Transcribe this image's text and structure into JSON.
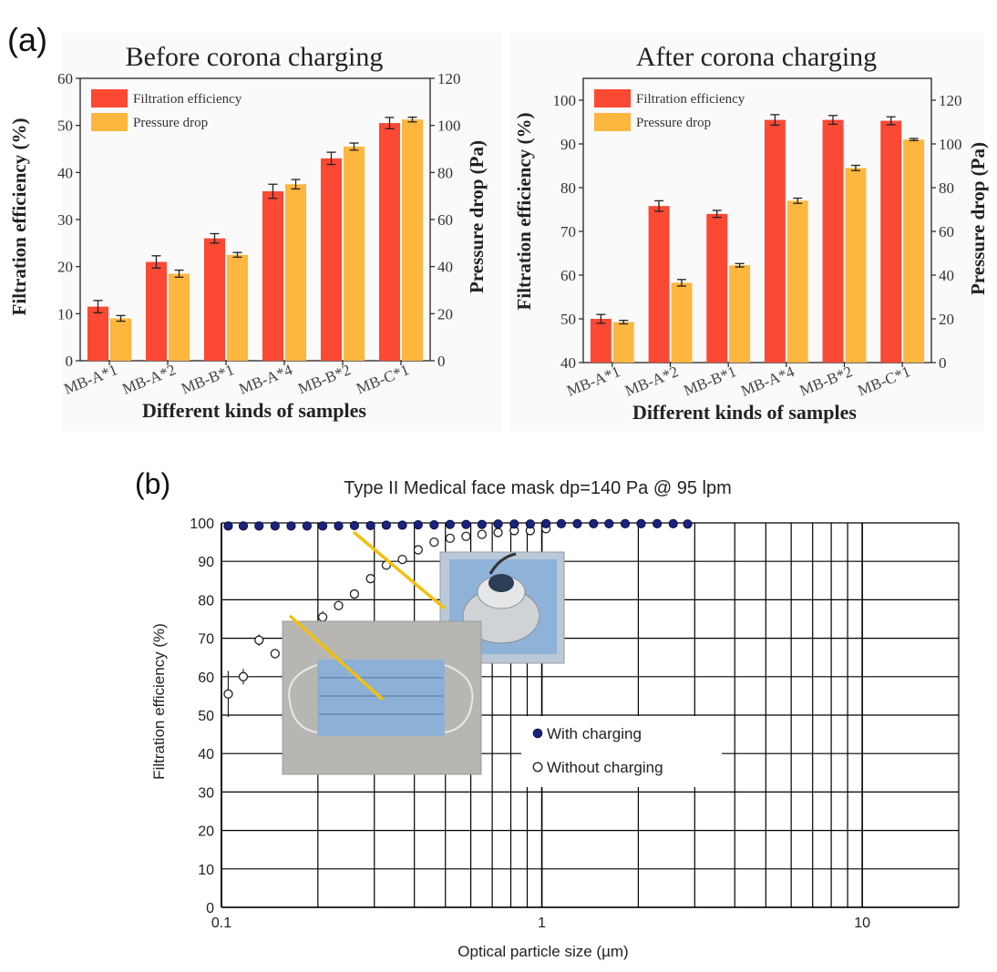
{
  "figure": {
    "panel_a_label": "(a)",
    "panel_b_label": "(b)",
    "photo_captions": [
      "mask-holder-photo",
      "face-mask-photo"
    ]
  },
  "colors": {
    "filtration_bar": "#fb4934",
    "pressure_bar": "#fdb73e",
    "with_charging_marker": "#1a237e",
    "grid": "#000000",
    "callout_line": "#f2c00f"
  },
  "chart_data": [
    {
      "type": "bar",
      "title": "Before corona charging",
      "xlabel": "Different kinds of samples",
      "ylabel": "Filtration efficiency (%)",
      "y2label": "Pressure drop (Pa)",
      "categories": [
        "MB-A*1",
        "MB-A*2",
        "MB-B*1",
        "MB-A*4",
        "MB-B*2",
        "MB-C*1"
      ],
      "ylim": [
        0,
        60
      ],
      "yticks": [
        0,
        10,
        20,
        30,
        40,
        50,
        60
      ],
      "y2lim": [
        0,
        120
      ],
      "y2ticks": [
        0,
        20,
        40,
        60,
        80,
        100,
        120
      ],
      "legend": "top-left",
      "series": [
        {
          "name": "Filtration efficiency",
          "axis": "left",
          "values": [
            11.5,
            21,
            26,
            36,
            43,
            50.5
          ],
          "errors": [
            1.3,
            1.3,
            1.0,
            1.5,
            1.3,
            1.2
          ]
        },
        {
          "name": "Pressure drop",
          "axis": "right",
          "values": [
            18,
            37,
            45,
            75,
            91,
            102.5
          ],
          "errors": [
            1.2,
            1.5,
            1.0,
            2.0,
            1.5,
            1.0
          ]
        }
      ]
    },
    {
      "type": "bar",
      "title": "After corona charging",
      "xlabel": "Different kinds of samples",
      "ylabel": "Filtration efficiency (%)",
      "y2label": "Pressure drop (Pa)",
      "categories": [
        "MB-A*1",
        "MB-A*2",
        "MB-B*1",
        "MB-A*4",
        "MB-B*2",
        "MB-C*1"
      ],
      "ylim": [
        40,
        105
      ],
      "yticks": [
        40,
        50,
        60,
        70,
        80,
        90,
        100
      ],
      "y2lim": [
        0,
        130
      ],
      "y2ticks": [
        0,
        20,
        40,
        60,
        80,
        100,
        120
      ],
      "legend": "top-left",
      "series": [
        {
          "name": "Filtration efficiency",
          "axis": "left",
          "values": [
            50,
            75.8,
            74,
            95.5,
            95.5,
            95.3
          ],
          "errors": [
            1.0,
            1.2,
            0.8,
            1.2,
            1.0,
            0.9
          ]
        },
        {
          "name": "Pressure drop",
          "axis": "right",
          "values": [
            18.5,
            36.5,
            44.5,
            74,
            89,
            102
          ],
          "errors": [
            0.8,
            1.5,
            0.8,
            1.2,
            1.2,
            0.5
          ]
        }
      ]
    },
    {
      "type": "scatter",
      "title": "Type II Medical face mask dp=140 Pa @ 95 lpm",
      "xlabel": "Optical particle size (µm)",
      "ylabel": "Filtration efficiency (%)",
      "xscale": "log",
      "xlim": [
        0.1,
        20
      ],
      "xticks": [
        0.1,
        1,
        10
      ],
      "ylim": [
        0,
        100
      ],
      "yticks": [
        0,
        10,
        20,
        30,
        40,
        50,
        60,
        70,
        80,
        90,
        100
      ],
      "grid": true,
      "legend": "middle-right",
      "series": [
        {
          "name": "With charging",
          "marker": "filled-circle",
          "x": [
            0.105,
            0.117,
            0.131,
            0.147,
            0.165,
            0.185,
            0.207,
            0.232,
            0.26,
            0.292,
            0.327,
            0.367,
            0.411,
            0.461,
            0.517,
            0.58,
            0.65,
            0.73,
            0.82,
            0.92,
            1.03,
            1.15,
            1.29,
            1.45,
            1.62,
            1.82,
            2.04,
            2.29,
            2.57,
            2.85
          ],
          "y": [
            99.2,
            99.2,
            99.2,
            99.2,
            99.2,
            99.2,
            99.2,
            99.2,
            99.3,
            99.3,
            99.4,
            99.4,
            99.5,
            99.5,
            99.6,
            99.6,
            99.6,
            99.7,
            99.7,
            99.7,
            99.8,
            99.8,
            99.8,
            99.8,
            99.8,
            99.8,
            99.8,
            99.8,
            99.8,
            99.7
          ]
        },
        {
          "name": "Without charging",
          "marker": "open-circle",
          "x": [
            0.105,
            0.117,
            0.131,
            0.147,
            0.165,
            0.185,
            0.207,
            0.232,
            0.26,
            0.292,
            0.327,
            0.367,
            0.411,
            0.461,
            0.517,
            0.58,
            0.65,
            0.73,
            0.82,
            0.92,
            1.03
          ],
          "y": [
            55.5,
            60,
            69.5,
            66,
            70.5,
            73,
            75.5,
            78.5,
            81.5,
            85.5,
            89,
            90.5,
            93,
            95,
            96,
            96.5,
            97,
            97.5,
            98,
            98,
            98.5
          ],
          "errors": [
            6,
            2,
            1.5,
            1.2,
            1.5,
            1.2,
            1.5,
            1.2,
            1.0,
            1.0,
            0.8,
            0.8,
            0.6,
            0.5,
            0.5,
            0.5,
            0.5,
            0.4,
            0.4,
            0.4,
            0.4
          ]
        }
      ]
    }
  ]
}
